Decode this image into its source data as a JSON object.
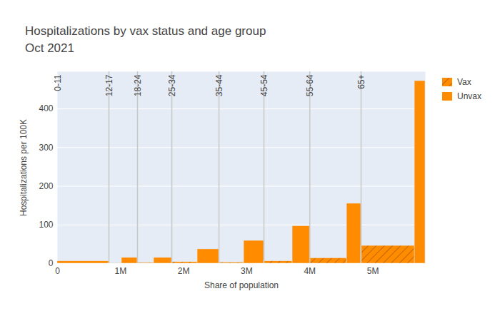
{
  "chart_data": {
    "type": "bar",
    "title": "Hospitalizations by vax status and age group",
    "subtitle": "Oct 2021",
    "x_label": "Share of population",
    "y_label": "Hospitalizations per 100K",
    "categories": [
      "0-11",
      "12-17",
      "18-24",
      "25-34",
      "35-44",
      "45-54",
      "55-64",
      "65+"
    ],
    "series": [
      {
        "name": "Vax",
        "color": "#ff8c00",
        "marker": "hatch",
        "values": [
          0,
          1,
          2,
          4,
          3,
          6,
          14,
          46
        ],
        "population": [
          0,
          204000,
          261000,
          408000,
          396000,
          453000,
          587000,
          850000
        ]
      },
      {
        "name": "Unvax",
        "color": "#ff8c00",
        "values": [
          6,
          15,
          15,
          37,
          59,
          97,
          155,
          472
        ],
        "population": [
          815000,
          249000,
          283000,
          340000,
          317000,
          274000,
          226000,
          169000
        ]
      }
    ],
    "xlim": [
      0,
      5832000
    ],
    "xticks": [
      0,
      {
        "value": 1000000,
        "label": "1M"
      },
      {
        "value": 2000000,
        "label": "2M"
      },
      {
        "value": 3000000,
        "label": "3M"
      },
      {
        "value": 4000000,
        "label": "4M"
      },
      {
        "value": 5000000,
        "label": "5M"
      }
    ],
    "ylim": [
      0,
      496
    ],
    "yticks": [
      0,
      100,
      200,
      300,
      400
    ],
    "grid": true,
    "legend": "top right"
  }
}
